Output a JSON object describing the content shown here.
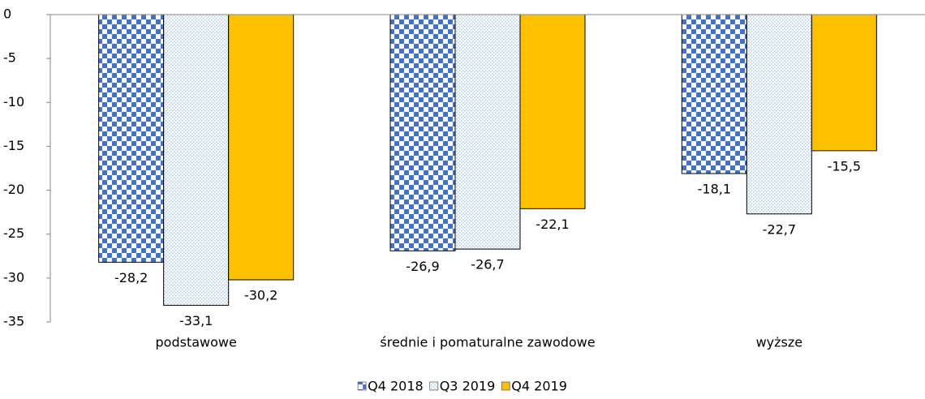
{
  "chart_data": {
    "type": "bar",
    "categories": [
      "podstawowe",
      "średnie i pomaturalne zawodowe",
      "wyższe"
    ],
    "series": [
      {
        "name": "Q4 2018",
        "color": "#4472c4",
        "pattern": "checker",
        "values": [
          -28.2,
          -26.9,
          -18.1
        ],
        "value_labels": [
          "-28,2",
          "-26,9",
          "-18,1"
        ]
      },
      {
        "name": "Q3 2019",
        "color": "#9dc3e6",
        "pattern": "dots",
        "values": [
          -33.1,
          -26.7,
          -22.7
        ],
        "value_labels": [
          "-33,1",
          "-26,7",
          "-22,7"
        ]
      },
      {
        "name": "Q4 2019",
        "color": "#ffc000",
        "pattern": "solid",
        "values": [
          -30.2,
          -22.1,
          -15.5
        ],
        "value_labels": [
          "-30,2",
          "-22,1",
          "-15,5"
        ]
      }
    ],
    "ylim": [
      -35,
      0
    ],
    "yticks": [
      0,
      -5,
      -10,
      -15,
      -20,
      -25,
      -30,
      -35
    ],
    "grid": false,
    "legend": "bottom"
  }
}
